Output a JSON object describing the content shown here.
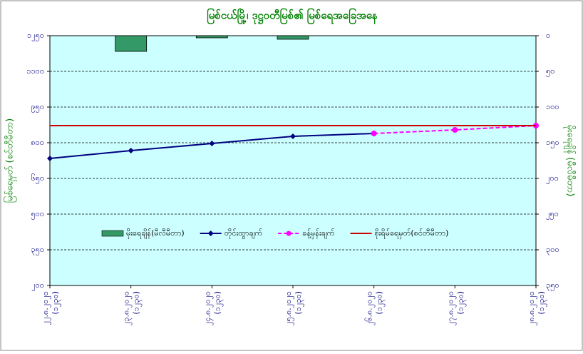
{
  "chart_data": {
    "type": "combo",
    "title": "မြစ်ငယ်မြို့၊ ဒုဋ္ဌဝတီမြစ်၏ မြစ်ရေအခြေအနေ",
    "y_label": "မြစ်ရေမှတ် (စင်တီမီတာ)",
    "y2_label": "မိုးရေချိန် (မီလီမီတာ)",
    "categories": [
      [
        "၂၂.၈.၂၀၂၀",
        "(၁၂၃၀)"
      ],
      [
        "၂၃.၈.၂၀၂၀",
        "(၁၂၃၀)"
      ],
      [
        "၂၄.၈.၂၀၂၀",
        "(၁၂၃၀)"
      ],
      [
        "၂၅.၈.၂၀၂၀",
        "(၁၂၃၀)"
      ],
      [
        "၂၆.၈.၂၀၂၀",
        "(၁၂၃၀)"
      ],
      [
        "၂၇.၈.၂၀၂၀",
        "(၁၂၃၀)"
      ],
      [
        "၂၈.၈.၂၀၂၀",
        "(၁၂၃၀)"
      ]
    ],
    "ylim": [
      200,
      1250
    ],
    "yticks": [
      {
        "value": 200,
        "label": "၂၀၀"
      },
      {
        "value": 350,
        "label": "၃၅၀"
      },
      {
        "value": 500,
        "label": "၅၀၀"
      },
      {
        "value": 650,
        "label": "၆၅၀"
      },
      {
        "value": 800,
        "label": "၈၀၀"
      },
      {
        "value": 950,
        "label": "၉၅၀"
      },
      {
        "value": 1100,
        "label": "၁၁၀၀"
      },
      {
        "value": 1250,
        "label": "၁၂၅၀"
      }
    ],
    "y2lim": [
      350,
      0
    ],
    "y2ticks": [
      {
        "value": 0,
        "label": "၀"
      },
      {
        "value": 50,
        "label": "၅၀"
      },
      {
        "value": 100,
        "label": "၁၀၀"
      },
      {
        "value": 150,
        "label": "၁၅၀"
      },
      {
        "value": 200,
        "label": "၂၀၀"
      },
      {
        "value": 250,
        "label": "၂၅၀"
      },
      {
        "value": 300,
        "label": "၃၀၀"
      },
      {
        "value": 350,
        "label": "၃၅၀"
      }
    ],
    "grid": true,
    "series": [
      {
        "name": "မိုးရေချိန်(မီလီမီတာ)",
        "type": "bar",
        "axis": "y2",
        "color": "#339966",
        "values": [
          null,
          22,
          3,
          5,
          null,
          null,
          null
        ]
      },
      {
        "name": "တိုင်းထွာချက်",
        "type": "line",
        "color": "#000080",
        "values": [
          734,
          767,
          797,
          827,
          839,
          null,
          null
        ]
      },
      {
        "name": "ခန့်မှန်းချက်",
        "type": "line",
        "dashed": true,
        "color": "#ff00ff",
        "values": [
          null,
          null,
          null,
          null,
          839,
          854,
          872
        ]
      },
      {
        "name": "စိုးရိမ်ရေမှတ်(စင်တီမီတာ)",
        "type": "hline",
        "color": "#cc0000",
        "value": 872
      }
    ]
  }
}
